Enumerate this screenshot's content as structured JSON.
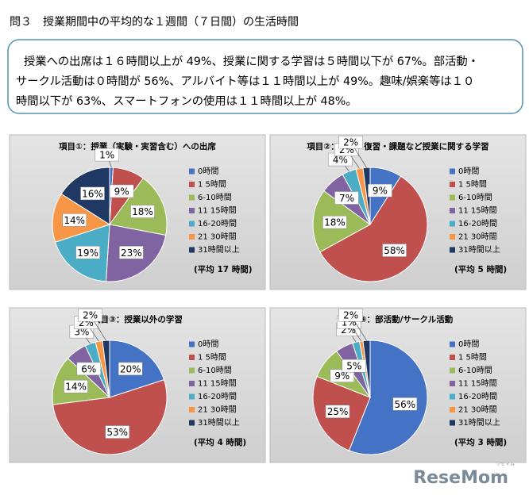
{
  "title": "問３　授業期間中の平均的な１週間（７日間）の生活時間",
  "summary": [
    "授業への出席は１６時間以上が 49%、授業に関する学習は５時間以下が 67%。部活動・",
    "サークル活動は０時間が 56%、アルバイト等は１１時間以上が 49%。趣味/娯楽等は１０",
    "時間以下が 63%、スマートフォンの使用は１１時間以上が 48%。"
  ],
  "chart_data": [
    {
      "type": "pie",
      "title": "項目①：授業（実験・実習含む）への出席",
      "categories": [
        "0時間",
        "1 5時間",
        "6-10時間",
        "11 15時間",
        "16-20時間",
        "21 30時間",
        "31時間以上"
      ],
      "values": [
        1,
        9,
        18,
        23,
        19,
        14,
        16
      ],
      "value_labels": [
        "1%",
        "9%",
        "18%",
        "23%",
        "19%",
        "14%",
        "16%"
      ],
      "colors": [
        "#4472c4",
        "#c0504d",
        "#9bbb59",
        "#8064a2",
        "#4bacc6",
        "#f79646",
        "#1f3864"
      ],
      "note": "(平均 17 時間)"
    },
    {
      "type": "pie",
      "title": "項目②：予習・復習・課題など授業に関する学習",
      "categories": [
        "0時間",
        "1 5時間",
        "6-10時間",
        "11 15時間",
        "16-20時間",
        "21 30時間",
        "31時間以上"
      ],
      "values": [
        9,
        58,
        18,
        7,
        4,
        2,
        2
      ],
      "value_labels": [
        "9%",
        "58%",
        "18%",
        "7%",
        "4%",
        "2%",
        "2%"
      ],
      "colors": [
        "#4472c4",
        "#c0504d",
        "#9bbb59",
        "#8064a2",
        "#4bacc6",
        "#f79646",
        "#1f3864"
      ],
      "note": "(平均 5 時間)"
    },
    {
      "type": "pie",
      "title": "項目③：授業以外の学習",
      "categories": [
        "0時間",
        "1 5時間",
        "6-10時間",
        "11 15時間",
        "16-20時間",
        "21 30時間",
        "31時間以上"
      ],
      "values": [
        20,
        53,
        14,
        6,
        3,
        2,
        2
      ],
      "value_labels": [
        "20%",
        "53%",
        "14%",
        "6%",
        "3%",
        "2%",
        "2%"
      ],
      "colors": [
        "#4472c4",
        "#c0504d",
        "#9bbb59",
        "#8064a2",
        "#4bacc6",
        "#f79646",
        "#1f3864"
      ],
      "note": "(平均 4 時間)"
    },
    {
      "type": "pie",
      "title": "項目④：部活動/サークル活動",
      "categories": [
        "0時間",
        "1 5時間",
        "6-10時間",
        "11 15時間",
        "16-20時間",
        "21 30時間",
        "31時間以上"
      ],
      "values": [
        56,
        25,
        9,
        5,
        2,
        1,
        2
      ],
      "value_labels": [
        "56%",
        "25%",
        "9%",
        "5%",
        "2%",
        "1%",
        "2%"
      ],
      "colors": [
        "#4472c4",
        "#c0504d",
        "#9bbb59",
        "#8064a2",
        "#4bacc6",
        "#f79646",
        "#1f3864"
      ],
      "note": "(平均 3 時間)"
    }
  ],
  "watermark": {
    "main": "ReseMom",
    "sub": "リセマム"
  }
}
